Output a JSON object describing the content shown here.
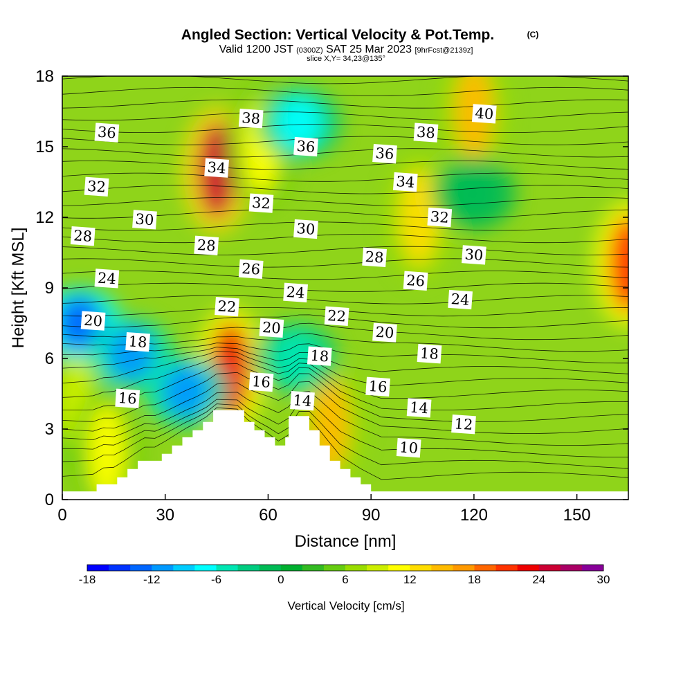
{
  "title": "Angled Section: Vertical Velocity & Pot.Temp.",
  "title_mark": "(C)",
  "subtitle": {
    "valid": "Valid 1200 JST",
    "utc": "(0300Z)",
    "date": "SAT 25 Mar 2023",
    "forecast": "[9hrFcst@2139z]",
    "slice": "slice X,Y= 34,23@135°"
  },
  "chart_data": {
    "type": "heatmap",
    "xlabel": "Distance [nm]",
    "ylabel": "Height [Kft MSL]",
    "xlim": [
      0,
      165
    ],
    "ylim": [
      0,
      18
    ],
    "x_ticks": [
      "0",
      "30",
      "60",
      "90",
      "120",
      "150"
    ],
    "y_ticks": [
      "0",
      "3",
      "6",
      "9",
      "12",
      "15",
      "18"
    ],
    "colorbar": {
      "label": "Vertical Velocity [cm/s]",
      "range": [
        -18,
        30
      ],
      "step": 2,
      "ticks": [
        "-18",
        "-12",
        "-6",
        "0",
        "6",
        "12",
        "18",
        "24",
        "30"
      ],
      "colors": [
        "#0000ff",
        "#0033ff",
        "#0066ff",
        "#0099ff",
        "#00ccff",
        "#00ffff",
        "#00e6b3",
        "#00cc80",
        "#00bb55",
        "#00b030",
        "#33bb22",
        "#66cc11",
        "#99dd00",
        "#ccee00",
        "#ffff00",
        "#ffdd00",
        "#ffbb00",
        "#ff9900",
        "#ff6600",
        "#ff3300",
        "#ee0000",
        "#cc0033",
        "#aa0066",
        "#880099"
      ]
    },
    "vertical_velocity_features": [
      {
        "type": "updraft",
        "x": 45,
        "y": 14,
        "peak": 24
      },
      {
        "type": "updraft",
        "x": 49,
        "y": 5.5,
        "peak": 22
      },
      {
        "type": "updraft",
        "x": 165,
        "y": 10,
        "peak": 20
      },
      {
        "type": "updraft",
        "x": 120,
        "y": 16.5,
        "peak": 14
      },
      {
        "type": "updraft",
        "x": 104,
        "y": 12,
        "peak": 12
      },
      {
        "type": "updraft",
        "x": 58,
        "y": 15,
        "peak": 10
      },
      {
        "type": "updraft",
        "x": 78,
        "y": 3.2,
        "peak": 14
      },
      {
        "type": "updraft",
        "x": 4,
        "y": 4.2,
        "peak": 8
      },
      {
        "type": "updraft",
        "x": 13,
        "y": 2,
        "peak": 10
      },
      {
        "type": "downdraft",
        "x": 5,
        "y": 7.5,
        "peak": -14
      },
      {
        "type": "downdraft",
        "x": 20,
        "y": 6.2,
        "peak": -12
      },
      {
        "type": "downdraft",
        "x": 36,
        "y": 4.6,
        "peak": -12
      },
      {
        "type": "downdraft",
        "x": 68,
        "y": 6,
        "peak": -6
      },
      {
        "type": "downdraft",
        "x": 69,
        "y": 16,
        "peak": -8
      },
      {
        "type": "downdraft",
        "x": 120,
        "y": 13,
        "peak": -2
      }
    ],
    "potential_temperature_labels": [
      {
        "text": "40",
        "x": 123,
        "y": 16.4
      },
      {
        "text": "38",
        "x": 55,
        "y": 16.2
      },
      {
        "text": "38",
        "x": 106,
        "y": 15.6
      },
      {
        "text": "36",
        "x": 13,
        "y": 15.6
      },
      {
        "text": "36",
        "x": 71,
        "y": 15.0
      },
      {
        "text": "36",
        "x": 94,
        "y": 14.7
      },
      {
        "text": "34",
        "x": 45,
        "y": 14.1
      },
      {
        "text": "34",
        "x": 100,
        "y": 13.5
      },
      {
        "text": "32",
        "x": 10,
        "y": 13.3
      },
      {
        "text": "32",
        "x": 58,
        "y": 12.6
      },
      {
        "text": "32",
        "x": 110,
        "y": 12.0
      },
      {
        "text": "30",
        "x": 24,
        "y": 11.9
      },
      {
        "text": "30",
        "x": 71,
        "y": 11.5
      },
      {
        "text": "30",
        "x": 120,
        "y": 10.4
      },
      {
        "text": "28",
        "x": 6,
        "y": 11.2
      },
      {
        "text": "28",
        "x": 42,
        "y": 10.8
      },
      {
        "text": "28",
        "x": 91,
        "y": 10.3
      },
      {
        "text": "26",
        "x": 55,
        "y": 9.8
      },
      {
        "text": "26",
        "x": 103,
        "y": 9.3
      },
      {
        "text": "24",
        "x": 13,
        "y": 9.4
      },
      {
        "text": "24",
        "x": 68,
        "y": 8.8
      },
      {
        "text": "24",
        "x": 116,
        "y": 8.5
      },
      {
        "text": "22",
        "x": 48,
        "y": 8.2
      },
      {
        "text": "22",
        "x": 80,
        "y": 7.8
      },
      {
        "text": "20",
        "x": 9,
        "y": 7.6
      },
      {
        "text": "20",
        "x": 61,
        "y": 7.3
      },
      {
        "text": "20",
        "x": 94,
        "y": 7.1
      },
      {
        "text": "18",
        "x": 22,
        "y": 6.7
      },
      {
        "text": "18",
        "x": 75,
        "y": 6.1
      },
      {
        "text": "18",
        "x": 107,
        "y": 6.2
      },
      {
        "text": "16",
        "x": 19,
        "y": 4.3
      },
      {
        "text": "16",
        "x": 58,
        "y": 5.0
      },
      {
        "text": "16",
        "x": 92,
        "y": 4.8
      },
      {
        "text": "14",
        "x": 70,
        "y": 4.2
      },
      {
        "text": "14",
        "x": 104,
        "y": 3.9
      },
      {
        "text": "12",
        "x": 117,
        "y": 3.2
      },
      {
        "text": "10",
        "x": 101,
        "y": 2.2
      }
    ],
    "terrain": [
      [
        0,
        0.35
      ],
      [
        10,
        0.35
      ],
      [
        10,
        0.65
      ],
      [
        16,
        0.65
      ],
      [
        16,
        0.95
      ],
      [
        19,
        0.95
      ],
      [
        19,
        1.3
      ],
      [
        22,
        1.3
      ],
      [
        22,
        1.65
      ],
      [
        29,
        1.65
      ],
      [
        29,
        1.95
      ],
      [
        32,
        1.95
      ],
      [
        32,
        2.3
      ],
      [
        35,
        2.3
      ],
      [
        35,
        2.65
      ],
      [
        38,
        2.65
      ],
      [
        38,
        2.95
      ],
      [
        41,
        2.95
      ],
      [
        41,
        3.3
      ],
      [
        44,
        3.3
      ],
      [
        44,
        3.8
      ],
      [
        53,
        3.8
      ],
      [
        53,
        3.3
      ],
      [
        56,
        3.3
      ],
      [
        56,
        2.95
      ],
      [
        59,
        2.95
      ],
      [
        59,
        2.65
      ],
      [
        62,
        2.65
      ],
      [
        62,
        2.3
      ],
      [
        65,
        2.3
      ],
      [
        65,
        2.65
      ],
      [
        66,
        2.65
      ],
      [
        66,
        3.55
      ],
      [
        72,
        3.55
      ],
      [
        72,
        2.95
      ],
      [
        75,
        2.95
      ],
      [
        75,
        2.3
      ],
      [
        78,
        2.3
      ],
      [
        78,
        1.65
      ],
      [
        81,
        1.65
      ],
      [
        81,
        1.3
      ],
      [
        84,
        1.3
      ],
      [
        84,
        0.95
      ],
      [
        87,
        0.95
      ],
      [
        87,
        0.65
      ],
      [
        90,
        0.65
      ],
      [
        90,
        0.35
      ],
      [
        165,
        0.35
      ]
    ]
  }
}
